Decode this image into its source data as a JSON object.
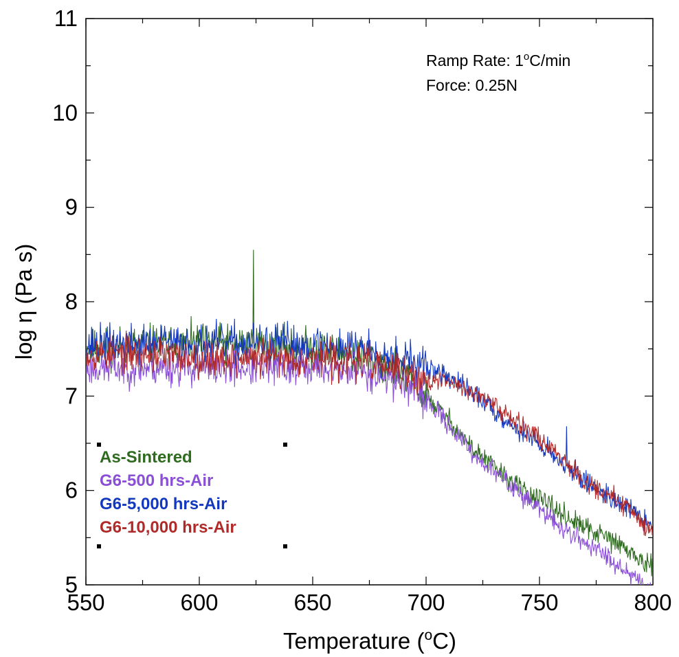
{
  "chart_data": {
    "type": "line",
    "title": "",
    "xlabel": {
      "prefix": "Temperature (",
      "sup": "o",
      "suffix": "C)"
    },
    "ylabel": "log η (Pa s)",
    "xlim": [
      550,
      800
    ],
    "ylim": [
      5,
      11
    ],
    "xticks": [
      550,
      600,
      650,
      700,
      750,
      800
    ],
    "yticks": [
      5,
      6,
      7,
      8,
      9,
      10,
      11
    ],
    "grid": false,
    "legend_position": "bottom-left",
    "annotations": [
      {
        "prefix": "Ramp Rate: 1",
        "sup": "o",
        "suffix": "C/min"
      },
      {
        "prefix": "Force: 0.25N",
        "sup": "",
        "suffix": ""
      }
    ],
    "series": [
      {
        "name": "As-Sintered",
        "color": "#2e6b1f",
        "x": [
          550,
          575,
          600,
          625,
          650,
          675,
          690,
          700,
          710,
          720,
          730,
          740,
          750,
          760,
          770,
          780,
          790,
          800
        ],
        "y": [
          7.5,
          7.55,
          7.55,
          7.55,
          7.5,
          7.4,
          7.25,
          7.0,
          6.75,
          6.45,
          6.25,
          6.05,
          5.9,
          5.75,
          5.6,
          5.5,
          5.35,
          5.15
        ],
        "noise": 0.16,
        "seed": 11,
        "spikes": [
          [
            624,
            8.55
          ]
        ]
      },
      {
        "name": "G6-500 hrs-Air",
        "color": "#8a4fd6",
        "x": [
          550,
          575,
          600,
          625,
          650,
          675,
          690,
          700,
          710,
          720,
          730,
          740,
          750,
          760,
          770,
          780,
          790,
          800
        ],
        "y": [
          7.3,
          7.3,
          7.3,
          7.3,
          7.3,
          7.25,
          7.15,
          6.95,
          6.7,
          6.4,
          6.2,
          6.0,
          5.8,
          5.6,
          5.45,
          5.3,
          5.12,
          4.95
        ],
        "noise": 0.15,
        "seed": 23,
        "spikes": []
      },
      {
        "name": "G6-5,000 hrs-Air",
        "color": "#1338c0",
        "x": [
          550,
          575,
          600,
          625,
          650,
          675,
          690,
          700,
          710,
          720,
          730,
          740,
          750,
          760,
          770,
          780,
          790,
          800
        ],
        "y": [
          7.55,
          7.55,
          7.55,
          7.55,
          7.55,
          7.5,
          7.4,
          7.3,
          7.2,
          7.05,
          6.85,
          6.65,
          6.5,
          6.3,
          6.1,
          5.95,
          5.8,
          5.6
        ],
        "noise": 0.16,
        "seed": 37,
        "spikes": [
          [
            762,
            6.68
          ]
        ]
      },
      {
        "name": "G6-10,000 hrs-Air",
        "color": "#b02a2a",
        "x": [
          550,
          575,
          600,
          625,
          650,
          675,
          690,
          700,
          710,
          720,
          730,
          740,
          750,
          760,
          770,
          780,
          790,
          800
        ],
        "y": [
          7.45,
          7.45,
          7.4,
          7.4,
          7.4,
          7.35,
          7.25,
          7.15,
          7.15,
          7.05,
          6.9,
          6.75,
          6.55,
          6.35,
          6.1,
          5.95,
          5.8,
          5.55
        ],
        "noise": 0.15,
        "seed": 53,
        "spikes": []
      }
    ]
  }
}
